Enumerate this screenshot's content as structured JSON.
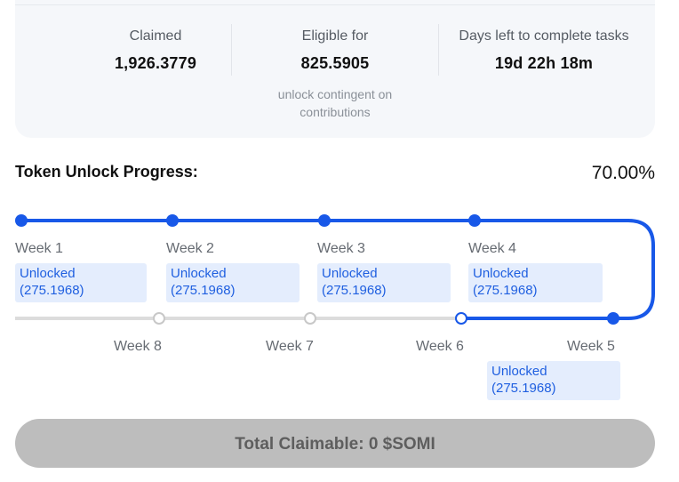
{
  "stats": {
    "claimed": {
      "label": "Claimed",
      "value": "1,926.3779"
    },
    "eligible": {
      "label": "Eligible for",
      "value": "825.5905",
      "note_line1": "unlock contingent on",
      "note_line2": "contributions"
    },
    "days_left": {
      "label": "Days left to complete tasks",
      "value": "19d 22h 18m"
    }
  },
  "progress": {
    "title": "Token Unlock Progress:",
    "percent_text": "70.00%",
    "percent_value": 70.0
  },
  "weeks": [
    {
      "label": "Week 1",
      "status_line1": "Unlocked",
      "status_line2": "(275.1968)",
      "unlocked": true
    },
    {
      "label": "Week 2",
      "status_line1": "Unlocked",
      "status_line2": "(275.1968)",
      "unlocked": true
    },
    {
      "label": "Week 3",
      "status_line1": "Unlocked",
      "status_line2": "(275.1968)",
      "unlocked": true
    },
    {
      "label": "Week 4",
      "status_line1": "Unlocked",
      "status_line2": "(275.1968)",
      "unlocked": true
    },
    {
      "label": "Week 5",
      "status_line1": "Unlocked",
      "status_line2": "(275.1968)",
      "unlocked": true
    },
    {
      "label": "Week 6",
      "unlocked": false,
      "current": true
    },
    {
      "label": "Week 7",
      "unlocked": false
    },
    {
      "label": "Week 8",
      "unlocked": false
    }
  ],
  "colors": {
    "accent": "#1858e8",
    "track_inactive": "#dcdcdc",
    "badge_bg": "#e4edfd",
    "button_bg": "#bdbdbd"
  },
  "claim": {
    "label": "Total Claimable: 0 $SOMI"
  }
}
